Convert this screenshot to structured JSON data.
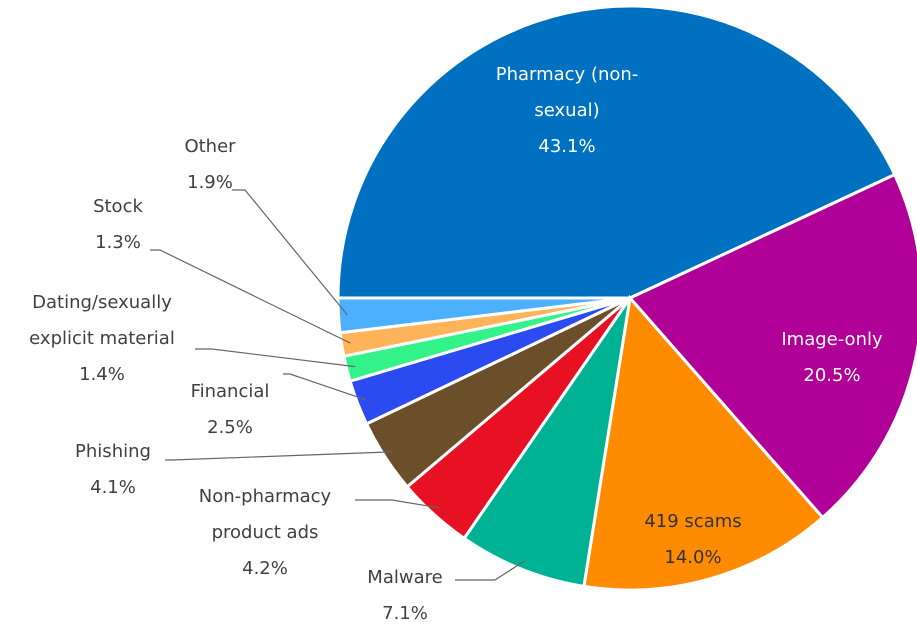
{
  "chart_data": {
    "type": "pie",
    "categories": [
      "Pharmacy (non-sexual)",
      "Image-only",
      "419 scams",
      "Malware",
      "Non-pharmacy product ads",
      "Phishing",
      "Financial",
      "Dating/sexually explicit material",
      "Stock",
      "Other"
    ],
    "values": [
      43.1,
      20.5,
      14.0,
      7.1,
      4.2,
      4.1,
      2.5,
      1.4,
      1.3,
      1.9
    ],
    "value_labels": [
      "43.1%",
      "20.5%",
      "14.0%",
      "7.1%",
      "4.2%",
      "4.1%",
      "2.5%",
      "1.4%",
      "1.3%",
      "1.9%"
    ],
    "colors": [
      "#0070c0",
      "#b10098",
      "#ff8c00",
      "#00b294",
      "#e81123",
      "#6b4f2a",
      "#2b4bf0",
      "#33f28a",
      "#ffb45a",
      "#4cb0ff"
    ]
  }
}
